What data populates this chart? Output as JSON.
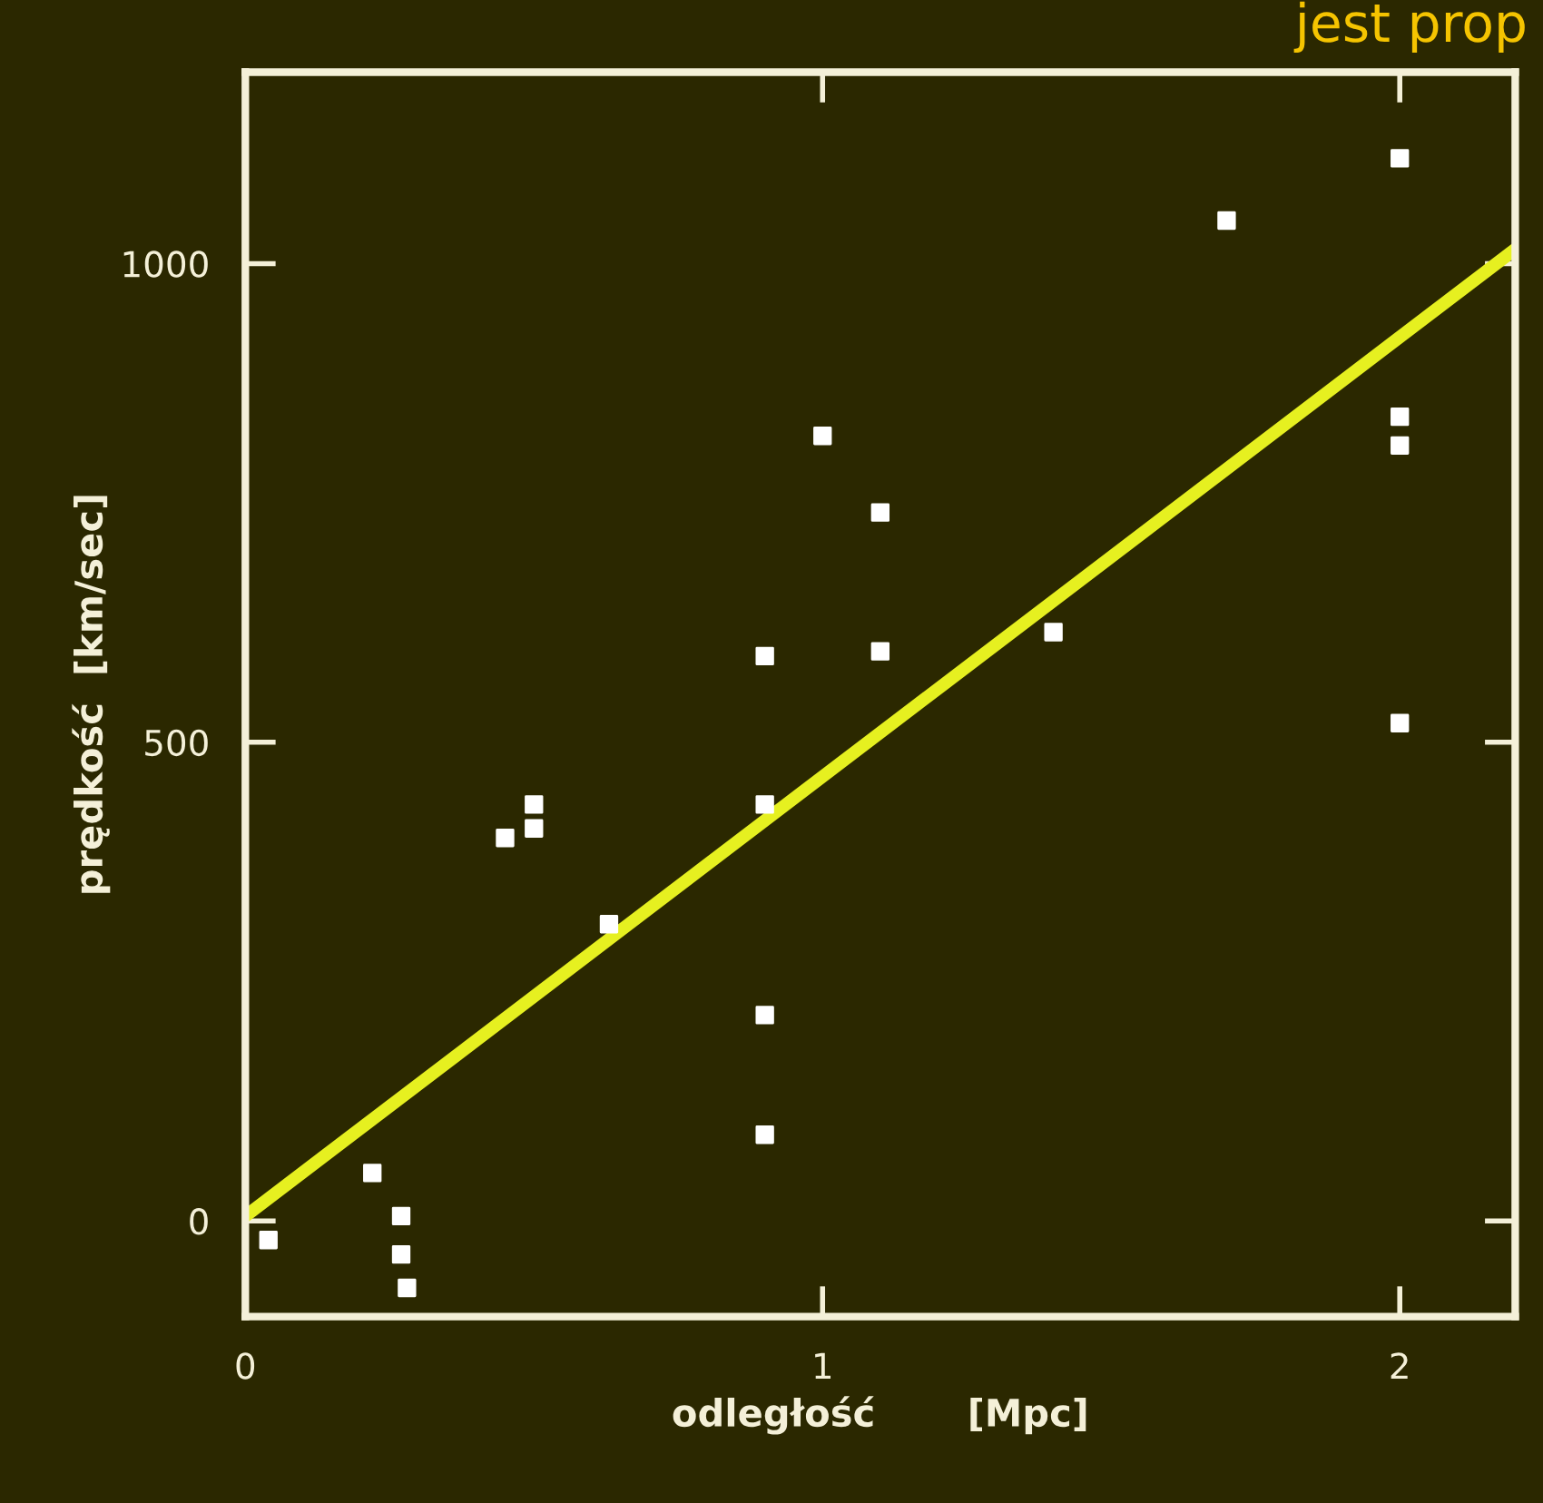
{
  "chart_data": {
    "type": "scatter",
    "xlabel": "odległość       [Mpc]",
    "ylabel": "prędkość  [km/sec]",
    "annotations": [
      "jest prop"
    ],
    "xlim": [
      0,
      2.2
    ],
    "ylim": [
      -100,
      1200
    ],
    "xticks": [
      0,
      1,
      2
    ],
    "yticks": [
      0,
      500,
      1000
    ],
    "grid": false,
    "series": [
      {
        "marker": "square",
        "color": "#ffffff",
        "x": [
          0.04,
          0.22,
          0.27,
          0.27,
          0.28,
          0.45,
          0.5,
          0.5,
          0.63,
          0.9,
          0.9,
          0.9,
          0.9,
          1.0,
          1.1,
          1.1,
          1.4,
          1.7,
          2.0,
          2.0,
          2.0,
          2.0
        ],
        "values": [
          -20,
          50,
          5,
          -35,
          -70,
          400,
          410,
          435,
          310,
          590,
          435,
          215,
          90,
          820,
          740,
          595,
          615,
          1045,
          1110,
          840,
          810,
          520
        ]
      },
      {
        "type": "line",
        "color": "#e6f020",
        "x": [
          0,
          2.2
        ],
        "values": [
          5,
          1015
        ]
      }
    ]
  }
}
